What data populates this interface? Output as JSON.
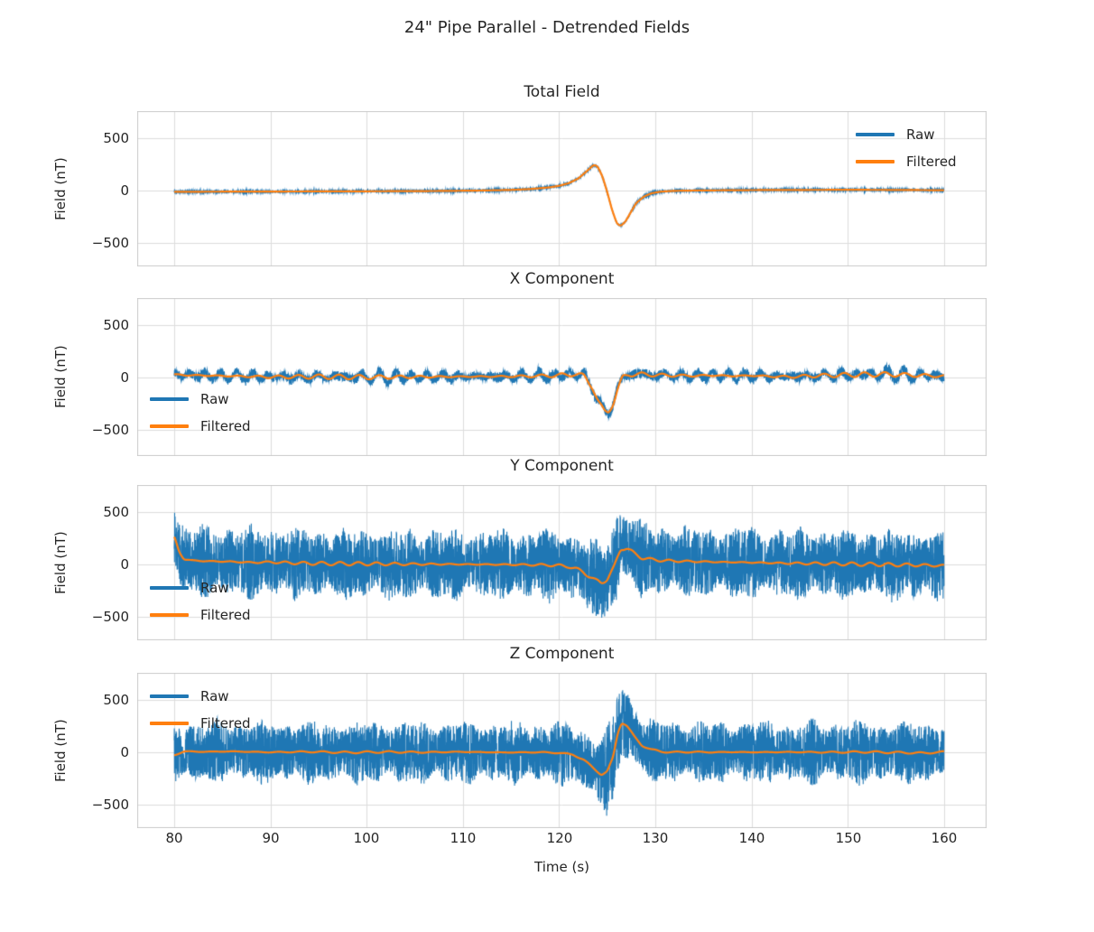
{
  "figure": {
    "title": "24\" Pipe Parallel - Detrended Fields",
    "xlabel": "Time (s)",
    "x_ticks": [
      "80",
      "90",
      "100",
      "110",
      "120",
      "130",
      "140",
      "150",
      "160"
    ],
    "y_ticks": [
      "500",
      "0",
      "−500"
    ],
    "legend_labels": {
      "raw": "Raw",
      "filtered": "Filtered"
    },
    "colors": {
      "raw": "#1f77b4",
      "filtered": "#ff7f0e",
      "grid": "#dcdcdc",
      "spine": "#cccccc",
      "text": "#262626"
    }
  },
  "chart_data": [
    {
      "type": "line",
      "title": "Total Field",
      "ylabel": "Field (nT)",
      "xlabel": "Time (s)",
      "xlim": [
        76.155,
        164.42
      ],
      "ylim": [
        -724,
        758
      ],
      "x_gridlines": [
        80,
        90,
        100,
        110,
        120,
        130,
        140,
        150,
        160
      ],
      "y_gridlines": [
        -500,
        0,
        500
      ],
      "grid": true,
      "legend_loc": "upper right",
      "series": [
        {
          "name": "Raw",
          "role": "raw",
          "color": "#1f77b4",
          "noise_amp": 9,
          "osc_amp": 0,
          "osc_period": 1.6,
          "noise_env": [
            [
              80,
              1
            ],
            [
              160,
              1
            ]
          ]
        },
        {
          "name": "Filtered",
          "role": "filtered",
          "color": "#ff7f0e",
          "wiggle_amp": 0,
          "wiggle_period": 2.0,
          "keypoints": [
            [
              80,
              -12
            ],
            [
              84,
              -11
            ],
            [
              88,
              -10
            ],
            [
              92,
              -9
            ],
            [
              96,
              -8
            ],
            [
              100,
              -7
            ],
            [
              104,
              -6
            ],
            [
              108,
              -4
            ],
            [
              112,
              0
            ],
            [
              115,
              6
            ],
            [
              117,
              14
            ],
            [
              119,
              30
            ],
            [
              120,
              45
            ],
            [
              121,
              70
            ],
            [
              122,
              115
            ],
            [
              123,
              195
            ],
            [
              123.6,
              245
            ],
            [
              124,
              230
            ],
            [
              124.5,
              135
            ],
            [
              125,
              -15
            ],
            [
              125.5,
              -185
            ],
            [
              126,
              -315
            ],
            [
              126.4,
              -338
            ],
            [
              126.9,
              -295
            ],
            [
              127.4,
              -215
            ],
            [
              128,
              -120
            ],
            [
              128.8,
              -58
            ],
            [
              129.6,
              -26
            ],
            [
              130.6,
              -10
            ],
            [
              132,
              -3
            ],
            [
              134,
              0
            ],
            [
              138,
              3
            ],
            [
              142,
              5
            ],
            [
              146,
              6
            ],
            [
              150,
              7
            ],
            [
              154,
              6
            ],
            [
              158,
              4
            ],
            [
              160,
              3
            ]
          ]
        }
      ]
    },
    {
      "type": "line",
      "title": "X Component",
      "ylabel": "Field (nT)",
      "xlabel": "Time (s)",
      "xlim": [
        76.155,
        164.42
      ],
      "ylim": [
        -750,
        758
      ],
      "x_gridlines": [
        80,
        90,
        100,
        110,
        120,
        130,
        140,
        150,
        160
      ],
      "y_gridlines": [
        -500,
        0,
        500
      ],
      "grid": true,
      "legend_loc": "lower left",
      "series": [
        {
          "name": "Raw",
          "role": "raw",
          "color": "#1f77b4",
          "noise_amp": 52,
          "osc_amp": 42,
          "osc_period": 1.65,
          "noise_env": [
            [
              80,
              1
            ],
            [
              160,
              1
            ]
          ]
        },
        {
          "name": "Filtered",
          "role": "filtered",
          "color": "#ff7f0e",
          "wiggle_amp": 22,
          "wiggle_period": 2.1,
          "keypoints": [
            [
              80,
              25
            ],
            [
              85,
              15
            ],
            [
              90,
              5
            ],
            [
              95,
              8
            ],
            [
              100,
              2
            ],
            [
              105,
              6
            ],
            [
              110,
              8
            ],
            [
              115,
              10
            ],
            [
              118,
              14
            ],
            [
              120,
              20
            ],
            [
              121.5,
              32
            ],
            [
              122.6,
              15
            ],
            [
              123.4,
              -80
            ],
            [
              124.1,
              -240
            ],
            [
              124.7,
              -325
            ],
            [
              125.1,
              -330
            ],
            [
              125.6,
              -250
            ],
            [
              126.1,
              -110
            ],
            [
              126.6,
              0
            ],
            [
              127.2,
              28
            ],
            [
              128,
              32
            ],
            [
              130,
              24
            ],
            [
              132,
              18
            ],
            [
              134,
              16
            ],
            [
              136,
              20
            ],
            [
              138,
              14
            ],
            [
              140,
              18
            ],
            [
              142,
              10
            ],
            [
              144,
              6
            ],
            [
              146,
              14
            ],
            [
              148,
              20
            ],
            [
              150,
              24
            ],
            [
              152,
              28
            ],
            [
              154,
              30
            ],
            [
              156,
              24
            ],
            [
              158,
              18
            ],
            [
              160,
              12
            ]
          ]
        }
      ]
    },
    {
      "type": "line",
      "title": "Y Component",
      "ylabel": "Field (nT)",
      "xlabel": "Time (s)",
      "xlim": [
        76.155,
        164.42
      ],
      "ylim": [
        -724,
        758
      ],
      "x_gridlines": [
        80,
        90,
        100,
        110,
        120,
        130,
        140,
        150,
        160
      ],
      "y_gridlines": [
        -500,
        0,
        500
      ],
      "grid": true,
      "legend_loc": "lower left",
      "series": [
        {
          "name": "Raw",
          "role": "raw",
          "color": "#1f77b4",
          "noise_amp": 370,
          "osc_amp": 0,
          "osc_period": 1.6,
          "noise_env": [
            [
              80,
              1
            ],
            [
              122,
              1
            ],
            [
              124,
              1.12
            ],
            [
              125,
              1.18
            ],
            [
              126,
              1.28
            ],
            [
              127,
              1.2
            ],
            [
              128.5,
              1.05
            ],
            [
              130,
              1
            ],
            [
              160,
              1
            ]
          ]
        },
        {
          "name": "Filtered",
          "role": "filtered",
          "color": "#ff7f0e",
          "wiggle_amp": 17,
          "wiggle_period": 1.9,
          "keypoints": [
            [
              80,
              268
            ],
            [
              80.5,
              120
            ],
            [
              81,
              52
            ],
            [
              82,
              36
            ],
            [
              84,
              30
            ],
            [
              86,
              26
            ],
            [
              88,
              18
            ],
            [
              90,
              22
            ],
            [
              93,
              12
            ],
            [
              96,
              8
            ],
            [
              100,
              6
            ],
            [
              104,
              3
            ],
            [
              108,
              2
            ],
            [
              112,
              0
            ],
            [
              116,
              -3
            ],
            [
              119,
              -6
            ],
            [
              121,
              -18
            ],
            [
              122.5,
              -70
            ],
            [
              123.7,
              -150
            ],
            [
              124.4,
              -176
            ],
            [
              125,
              -138
            ],
            [
              125.7,
              -30
            ],
            [
              126.4,
              150
            ],
            [
              127,
              158
            ],
            [
              127.8,
              104
            ],
            [
              128.6,
              64
            ],
            [
              129.6,
              46
            ],
            [
              131,
              36
            ],
            [
              133,
              30
            ],
            [
              135,
              26
            ],
            [
              137,
              22
            ],
            [
              139,
              20
            ],
            [
              141,
              16
            ],
            [
              143,
              12
            ],
            [
              145,
              10
            ],
            [
              147,
              8
            ],
            [
              149,
              6
            ],
            [
              151,
              2
            ],
            [
              153,
              0
            ],
            [
              155,
              -4
            ],
            [
              157,
              -6
            ],
            [
              160,
              -12
            ]
          ]
        }
      ]
    },
    {
      "type": "line",
      "title": "Z Component",
      "ylabel": "Field (nT)",
      "xlabel": "Time (s)",
      "xlim": [
        76.155,
        164.42
      ],
      "ylim": [
        -724,
        758
      ],
      "x_gridlines": [
        80,
        90,
        100,
        110,
        120,
        130,
        140,
        150,
        160
      ],
      "y_gridlines": [
        -500,
        0,
        500
      ],
      "grid": true,
      "legend_loc": "upper left",
      "series": [
        {
          "name": "Raw",
          "role": "raw",
          "color": "#1f77b4",
          "noise_amp": 325,
          "osc_amp": 0,
          "osc_period": 1.6,
          "noise_env": [
            [
              80,
              1
            ],
            [
              122.5,
              1
            ],
            [
              124,
              1.15
            ],
            [
              125,
              1.35
            ],
            [
              126.2,
              1.42
            ],
            [
              127,
              1.18
            ],
            [
              128.5,
              1.03
            ],
            [
              130,
              1
            ],
            [
              160,
              1
            ]
          ]
        },
        {
          "name": "Filtered",
          "role": "filtered",
          "color": "#ff7f0e",
          "wiggle_amp": 9,
          "wiggle_period": 2.3,
          "keypoints": [
            [
              80,
              -28
            ],
            [
              81,
              8
            ],
            [
              83,
              5
            ],
            [
              86,
              8
            ],
            [
              90,
              0
            ],
            [
              94,
              5
            ],
            [
              98,
              -2
            ],
            [
              102,
              3
            ],
            [
              106,
              0
            ],
            [
              110,
              4
            ],
            [
              114,
              -2
            ],
            [
              118,
              0
            ],
            [
              120,
              -6
            ],
            [
              121.5,
              -24
            ],
            [
              122.5,
              -68
            ],
            [
              123.5,
              -148
            ],
            [
              124.4,
              -212
            ],
            [
              125,
              -186
            ],
            [
              125.6,
              -55
            ],
            [
              126.1,
              190
            ],
            [
              126.5,
              288
            ],
            [
              127,
              258
            ],
            [
              127.8,
              148
            ],
            [
              128.6,
              68
            ],
            [
              129.6,
              24
            ],
            [
              130.6,
              6
            ],
            [
              132,
              0
            ],
            [
              134,
              3
            ],
            [
              136,
              0
            ],
            [
              138,
              2
            ],
            [
              140,
              0
            ],
            [
              144,
              2
            ],
            [
              148,
              0
            ],
            [
              152,
              3
            ],
            [
              156,
              -4
            ],
            [
              158,
              -8
            ],
            [
              160,
              4
            ]
          ]
        }
      ]
    }
  ]
}
